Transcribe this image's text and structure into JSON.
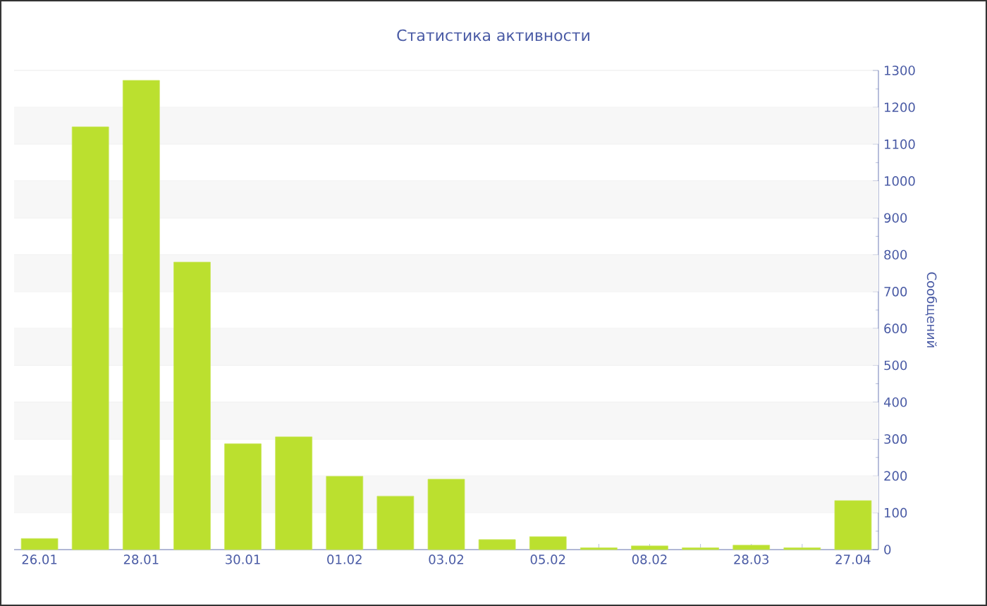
{
  "chart_data": {
    "type": "bar",
    "title": "Статистика активности",
    "ylabel": "Сообщений",
    "categories": [
      "26.01",
      null,
      "28.01",
      null,
      "30.01",
      null,
      "01.02",
      null,
      "03.02",
      null,
      "05.02",
      null,
      "08.02",
      null,
      "28.03",
      null,
      "27.04"
    ],
    "values": [
      30,
      1147,
      1273,
      780,
      287,
      306,
      199,
      145,
      191,
      27,
      35,
      5,
      10,
      5,
      12,
      5,
      133
    ],
    "color": "#bbe02f",
    "ylim": [
      0,
      1300
    ],
    "yticks": [
      0,
      100,
      200,
      300,
      400,
      500,
      600,
      700,
      800,
      900,
      1000,
      1100,
      1200,
      1300
    ],
    "grid": "y"
  }
}
